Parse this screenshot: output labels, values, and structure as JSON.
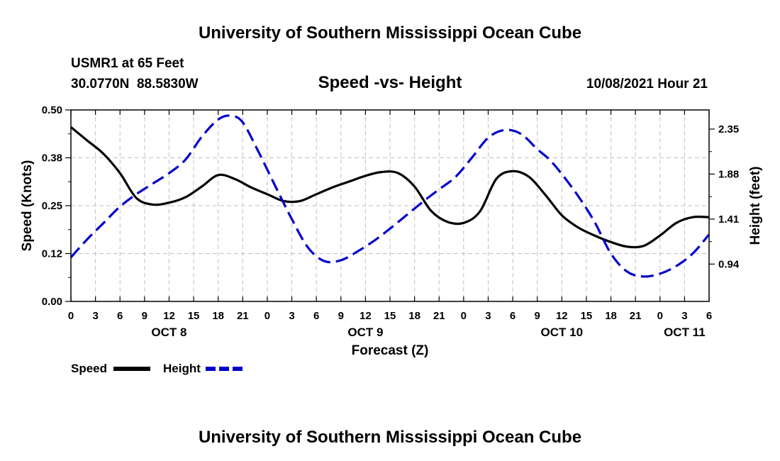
{
  "header": {
    "title": "University of Southern Mississippi Ocean Cube",
    "station": "USMR1 at 65 Feet",
    "location": "30.0770N  88.5830W",
    "subtitle": "Speed -vs- Height",
    "datetime": "10/08/2021 Hour 21"
  },
  "footer": {
    "title": "University of Southern Mississippi Ocean Cube"
  },
  "legend": {
    "speed_label": "Speed",
    "height_label": "Height"
  },
  "colors": {
    "speed": "#000000",
    "height": "#0000cc",
    "grid": "#c0c0c0"
  },
  "chart_data": {
    "type": "line",
    "title": "Speed -vs- Height",
    "xlabel": "Forecast (Z)",
    "ylabel_left": "Speed (Knots)",
    "ylabel_right": "Height (feet)",
    "x_unit": "hours from Oct 8 00Z",
    "xlim": [
      0,
      78
    ],
    "ylim_left": [
      0,
      0.5
    ],
    "ylim_right": [
      0.55,
      2.55
    ],
    "x_tick_labels": [
      "0",
      "3",
      "6",
      "9",
      "12",
      "15",
      "18",
      "21",
      "0",
      "3",
      "6",
      "9",
      "12",
      "15",
      "18",
      "21",
      "0",
      "3",
      "6",
      "9",
      "12",
      "15",
      "18",
      "21",
      "0",
      "3",
      "6"
    ],
    "date_labels": [
      {
        "label": "OCT 8",
        "x": 12
      },
      {
        "label": "OCT 9",
        "x": 36
      },
      {
        "label": "OCT 10",
        "x": 60
      },
      {
        "label": "OCT 11",
        "x": 75
      }
    ],
    "y_left_ticks": [
      "0.00",
      "0.12",
      "0.25",
      "0.38",
      "0.50"
    ],
    "y_left_tick_values": [
      0,
      0.125,
      0.25,
      0.375,
      0.5
    ],
    "y_right_ticks": [
      "0.94",
      "1.41",
      "1.88",
      "2.35"
    ],
    "y_right_tick_values": [
      0.94,
      1.41,
      1.88,
      2.35
    ],
    "series": [
      {
        "name": "Speed",
        "axis": "left",
        "style": "solid",
        "x": [
          0,
          2,
          4,
          6,
          8,
          10,
          12,
          14,
          16,
          18,
          20,
          22,
          24,
          26,
          28,
          30,
          32,
          34,
          36,
          38,
          40,
          42,
          44,
          46,
          48,
          50,
          52,
          54,
          56,
          58,
          60,
          62,
          64,
          66,
          68,
          70,
          72,
          74,
          76,
          78
        ],
        "values": [
          0.455,
          0.42,
          0.385,
          0.335,
          0.27,
          0.253,
          0.258,
          0.272,
          0.3,
          0.33,
          0.32,
          0.298,
          0.28,
          0.262,
          0.262,
          0.28,
          0.298,
          0.313,
          0.328,
          0.338,
          0.335,
          0.3,
          0.237,
          0.208,
          0.205,
          0.235,
          0.32,
          0.34,
          0.325,
          0.278,
          0.225,
          0.193,
          0.172,
          0.155,
          0.143,
          0.145,
          0.172,
          0.205,
          0.22,
          0.22
        ]
      },
      {
        "name": "Height",
        "axis": "right",
        "style": "dashed",
        "x": [
          0,
          2,
          4,
          6,
          8,
          10,
          12,
          14,
          16,
          18,
          19.5,
          21,
          23,
          25,
          27,
          29,
          31,
          33,
          35,
          37,
          39,
          41,
          43,
          45,
          47,
          49,
          51,
          53,
          55,
          57,
          58.5,
          60,
          62,
          64,
          66,
          68,
          70,
          72,
          74,
          76,
          78
        ],
        "values": [
          1.01,
          1.2,
          1.37,
          1.54,
          1.67,
          1.78,
          1.89,
          2.03,
          2.27,
          2.45,
          2.49,
          2.42,
          2.1,
          1.75,
          1.41,
          1.11,
          0.97,
          0.98,
          1.07,
          1.18,
          1.31,
          1.45,
          1.59,
          1.72,
          1.85,
          2.05,
          2.26,
          2.34,
          2.3,
          2.14,
          2.03,
          1.88,
          1.65,
          1.38,
          1.05,
          0.86,
          0.81,
          0.84,
          0.92,
          1.05,
          1.25
        ]
      }
    ]
  }
}
